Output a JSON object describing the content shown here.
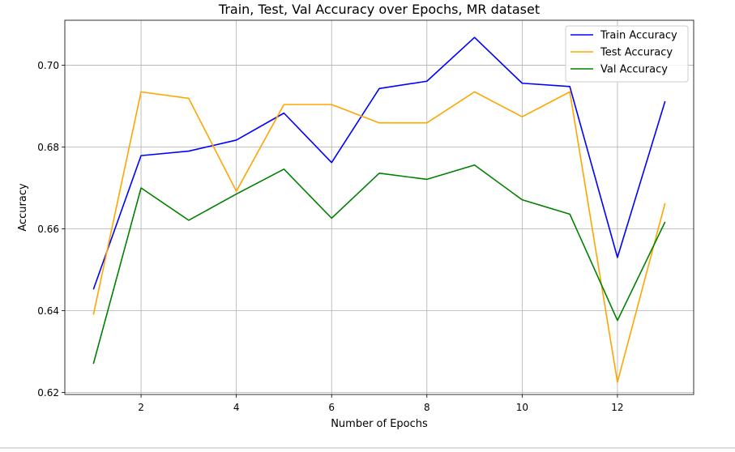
{
  "chart_data": {
    "type": "line",
    "title": "Train, Test, Val Accuracy over Epochs, MR dataset",
    "xlabel": "Number of Epochs",
    "ylabel": "Accuracy",
    "x": [
      1,
      2,
      3,
      4,
      5,
      6,
      7,
      8,
      9,
      10,
      11,
      12,
      13
    ],
    "xlim": [
      0.4,
      13.6
    ],
    "ylim": [
      0.6195,
      0.711
    ],
    "xticks": [
      2,
      4,
      6,
      8,
      10,
      12
    ],
    "xtick_labels": [
      "2",
      "4",
      "6",
      "8",
      "10",
      "12"
    ],
    "yticks": [
      0.62,
      0.64,
      0.66,
      0.68,
      0.7
    ],
    "ytick_labels": [
      "0.62",
      "0.64",
      "0.66",
      "0.68",
      "0.70"
    ],
    "grid": true,
    "legend_position": "top-right",
    "series": [
      {
        "name": "Train Accuracy",
        "color": "#0000ff",
        "values": [
          0.6452,
          0.6779,
          0.679,
          0.6817,
          0.6883,
          0.6762,
          0.6943,
          0.6961,
          0.7068,
          0.6956,
          0.6948,
          0.653,
          0.6912
        ]
      },
      {
        "name": "Test Accuracy",
        "color": "#ffa500",
        "values": [
          0.639,
          0.6935,
          0.6919,
          0.6692,
          0.6904,
          0.6904,
          0.6859,
          0.6859,
          0.6935,
          0.6874,
          0.6935,
          0.6225,
          0.6663
        ]
      },
      {
        "name": "Val Accuracy",
        "color": "#008000",
        "values": [
          0.627,
          0.67,
          0.6621,
          0.6685,
          0.6746,
          0.6626,
          0.6736,
          0.6721,
          0.6756,
          0.6671,
          0.6636,
          0.6376,
          0.6617
        ]
      }
    ]
  }
}
